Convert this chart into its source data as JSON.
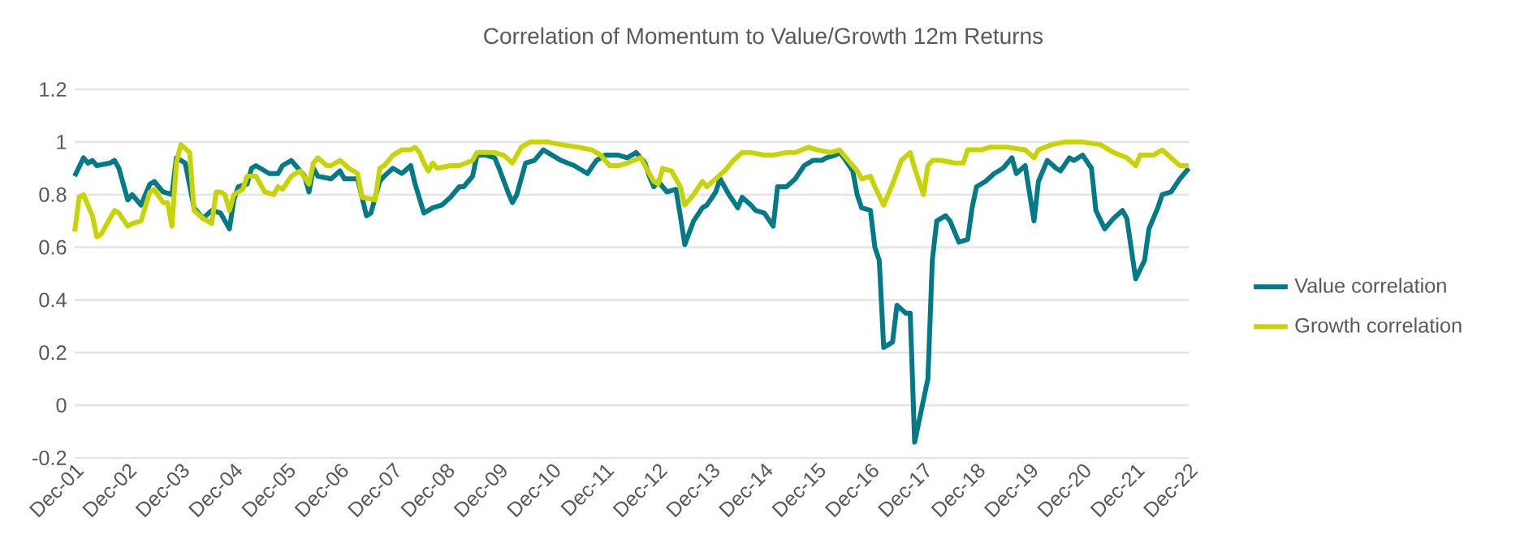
{
  "chart_data": {
    "type": "line",
    "title": "Correlation of Momentum to Value/Growth 12m Returns",
    "series": [
      {
        "name": "Value correlation",
        "color": "#007a87",
        "x": [
          "2001-12",
          "2002-02",
          "2002-03",
          "2002-04",
          "2002-05",
          "2002-08",
          "2002-09",
          "2002-10",
          "2002-12",
          "2003-01",
          "2003-03",
          "2003-05",
          "2003-06",
          "2003-08",
          "2003-10",
          "2003-11",
          "2004-01",
          "2004-03",
          "2004-05",
          "2004-07",
          "2004-09",
          "2004-11",
          "2004-12",
          "2005-01",
          "2005-03",
          "2005-04",
          "2005-05",
          "2005-08",
          "2005-10",
          "2005-11",
          "2006-01",
          "2006-02",
          "2006-04",
          "2006-05",
          "2006-06",
          "2006-07",
          "2006-10",
          "2006-12",
          "2007-01",
          "2007-04",
          "2007-06",
          "2007-07",
          "2007-09",
          "2007-10",
          "2007-12",
          "2008-02",
          "2008-04",
          "2008-05",
          "2008-07",
          "2008-09",
          "2008-11",
          "2009-01",
          "2009-03",
          "2009-04",
          "2009-06",
          "2009-07",
          "2009-09",
          "2009-11",
          "2009-12",
          "2010-02",
          "2010-03",
          "2010-04",
          "2010-06",
          "2010-08",
          "2010-10",
          "2010-12",
          "2011-02",
          "2011-05",
          "2011-08",
          "2011-10",
          "2011-12",
          "2012-03",
          "2012-05",
          "2012-07",
          "2012-09",
          "2012-10",
          "2012-11",
          "2012-12",
          "2013-02",
          "2013-04",
          "2013-05",
          "2013-06",
          "2013-08",
          "2013-10",
          "2013-11",
          "2014-01",
          "2014-02",
          "2014-04",
          "2014-06",
          "2014-07",
          "2014-09",
          "2014-10",
          "2014-12",
          "2015-02",
          "2015-03",
          "2015-05",
          "2015-07",
          "2015-09",
          "2015-11",
          "2016-01",
          "2016-02",
          "2016-04",
          "2016-05",
          "2016-06",
          "2016-08",
          "2016-09",
          "2016-10",
          "2016-12",
          "2017-01",
          "2017-02",
          "2017-03",
          "2017-05",
          "2017-06",
          "2017-08",
          "2017-09",
          "2017-10",
          "2017-12",
          "2018-01",
          "2018-02",
          "2018-03",
          "2018-05",
          "2018-06",
          "2018-08",
          "2018-10",
          "2018-11",
          "2018-12",
          "2019-02",
          "2019-04",
          "2019-06",
          "2019-08",
          "2019-09",
          "2019-11",
          "2020-01",
          "2020-02",
          "2020-04",
          "2020-06",
          "2020-07",
          "2020-09",
          "2020-10",
          "2020-12",
          "2021-02",
          "2021-03",
          "2021-05",
          "2021-07",
          "2021-09",
          "2021-10",
          "2021-12",
          "2022-02",
          "2022-03",
          "2022-05",
          "2022-06",
          "2022-08",
          "2022-10",
          "2022-12"
        ],
        "values": [
          0.87,
          0.94,
          0.92,
          0.93,
          0.91,
          0.92,
          0.93,
          0.9,
          0.78,
          0.8,
          0.76,
          0.84,
          0.85,
          0.81,
          0.8,
          0.94,
          0.92,
          0.75,
          0.71,
          0.74,
          0.73,
          0.67,
          0.78,
          0.83,
          0.84,
          0.9,
          0.91,
          0.88,
          0.88,
          0.91,
          0.93,
          0.91,
          0.87,
          0.81,
          0.9,
          0.87,
          0.86,
          0.89,
          0.86,
          0.86,
          0.72,
          0.73,
          0.85,
          0.87,
          0.9,
          0.88,
          0.91,
          0.84,
          0.73,
          0.75,
          0.76,
          0.79,
          0.83,
          0.83,
          0.87,
          0.95,
          0.95,
          0.94,
          0.9,
          0.81,
          0.77,
          0.8,
          0.92,
          0.93,
          0.97,
          0.95,
          0.93,
          0.91,
          0.88,
          0.93,
          0.95,
          0.95,
          0.94,
          0.96,
          0.92,
          0.87,
          0.83,
          0.85,
          0.81,
          0.82,
          0.72,
          0.61,
          0.7,
          0.75,
          0.76,
          0.81,
          0.86,
          0.8,
          0.75,
          0.79,
          0.76,
          0.74,
          0.73,
          0.68,
          0.83,
          0.83,
          0.86,
          0.91,
          0.93,
          0.93,
          0.94,
          0.95,
          0.96,
          0.94,
          0.89,
          0.8,
          0.75,
          0.74,
          0.6,
          0.55,
          0.22,
          0.24,
          0.38,
          0.35,
          0.35,
          -0.14,
          0.02,
          0.1,
          0.55,
          0.7,
          0.72,
          0.7,
          0.62,
          0.63,
          0.75,
          0.83,
          0.85,
          0.88,
          0.9,
          0.94,
          0.88,
          0.91,
          0.7,
          0.85,
          0.93,
          0.9,
          0.89,
          0.94,
          0.93,
          0.95,
          0.9,
          0.74,
          0.67,
          0.71,
          0.74,
          0.71,
          0.48,
          0.55,
          0.67,
          0.75,
          0.8,
          0.81,
          0.86,
          0.9
        ]
      },
      {
        "name": "Growth correlation",
        "color": "#c8d400",
        "x": [
          "2001-12",
          "2002-01",
          "2002-02",
          "2002-04",
          "2002-05",
          "2002-06",
          "2002-08",
          "2002-09",
          "2002-10",
          "2002-12",
          "2003-01",
          "2003-03",
          "2003-05",
          "2003-06",
          "2003-08",
          "2003-09",
          "2003-10",
          "2003-11",
          "2003-12",
          "2004-02",
          "2004-03",
          "2004-05",
          "2004-07",
          "2004-08",
          "2004-09",
          "2004-10",
          "2004-11",
          "2004-12",
          "2005-02",
          "2005-03",
          "2005-05",
          "2005-07",
          "2005-09",
          "2005-10",
          "2005-11",
          "2006-01",
          "2006-03",
          "2006-05",
          "2006-06",
          "2006-07",
          "2006-09",
          "2006-10",
          "2006-12",
          "2007-02",
          "2007-04",
          "2007-05",
          "2007-08",
          "2007-09",
          "2007-10",
          "2007-12",
          "2008-02",
          "2008-04",
          "2008-05",
          "2008-06",
          "2008-07",
          "2008-08",
          "2008-09",
          "2008-10",
          "2009-01",
          "2009-03",
          "2009-06",
          "2009-07",
          "2009-11",
          "2010-01",
          "2010-03",
          "2010-05",
          "2010-07",
          "2010-11",
          "2011-02",
          "2011-06",
          "2011-09",
          "2011-11",
          "2012-01",
          "2012-03",
          "2012-05",
          "2012-08",
          "2012-09",
          "2012-11",
          "2012-12",
          "2013-01",
          "2013-03",
          "2013-04",
          "2013-05",
          "2013-06",
          "2013-08",
          "2013-10",
          "2013-11",
          "2014-01",
          "2014-03",
          "2014-05",
          "2014-07",
          "2014-09",
          "2014-12",
          "2015-02",
          "2015-05",
          "2015-07",
          "2015-10",
          "2015-12",
          "2016-03",
          "2016-05",
          "2016-07",
          "2016-09",
          "2016-10",
          "2016-12",
          "2017-01",
          "2017-03",
          "2017-05",
          "2017-07",
          "2017-09",
          "2017-10",
          "2017-12",
          "2018-01",
          "2018-02",
          "2018-04",
          "2018-07",
          "2018-09",
          "2018-10",
          "2019-01",
          "2019-03",
          "2019-07",
          "2019-11",
          "2020-01",
          "2020-02",
          "2020-05",
          "2020-08",
          "2020-12",
          "2021-04",
          "2021-07",
          "2021-10",
          "2021-12",
          "2022-01",
          "2022-04",
          "2022-06",
          "2022-08",
          "2022-10",
          "2022-12"
        ],
        "values": [
          0.66,
          0.79,
          0.8,
          0.72,
          0.64,
          0.65,
          0.71,
          0.74,
          0.73,
          0.68,
          0.69,
          0.7,
          0.81,
          0.82,
          0.77,
          0.77,
          0.68,
          0.92,
          0.99,
          0.96,
          0.74,
          0.71,
          0.69,
          0.81,
          0.81,
          0.8,
          0.74,
          0.8,
          0.82,
          0.87,
          0.87,
          0.81,
          0.8,
          0.83,
          0.82,
          0.87,
          0.89,
          0.84,
          0.92,
          0.94,
          0.91,
          0.91,
          0.93,
          0.9,
          0.88,
          0.79,
          0.78,
          0.9,
          0.91,
          0.95,
          0.97,
          0.97,
          0.98,
          0.96,
          0.92,
          0.89,
          0.92,
          0.9,
          0.91,
          0.91,
          0.93,
          0.96,
          0.96,
          0.95,
          0.92,
          0.98,
          1.0,
          1.0,
          0.99,
          0.98,
          0.97,
          0.95,
          0.91,
          0.91,
          0.92,
          0.94,
          0.91,
          0.85,
          0.84,
          0.9,
          0.89,
          0.86,
          0.83,
          0.76,
          0.8,
          0.85,
          0.83,
          0.86,
          0.89,
          0.93,
          0.96,
          0.96,
          0.95,
          0.95,
          0.96,
          0.96,
          0.98,
          0.97,
          0.96,
          0.97,
          0.93,
          0.89,
          0.86,
          0.87,
          0.83,
          0.76,
          0.84,
          0.93,
          0.96,
          0.9,
          0.8,
          0.91,
          0.93,
          0.93,
          0.92,
          0.92,
          0.97,
          0.97,
          0.98,
          0.98,
          0.97,
          0.94,
          0.97,
          0.99,
          1.0,
          1.0,
          0.99,
          0.96,
          0.94,
          0.91,
          0.95,
          0.95,
          0.97,
          0.94,
          0.91,
          0.91
        ]
      }
    ],
    "xlim": [
      "2001-12",
      "2022-12"
    ],
    "xticks": [
      {
        "value": "2001-12",
        "label": "Dec-01"
      },
      {
        "value": "2002-12",
        "label": "Dec-02"
      },
      {
        "value": "2003-12",
        "label": "Dec-03"
      },
      {
        "value": "2004-12",
        "label": "Dec-04"
      },
      {
        "value": "2005-12",
        "label": "Dec-05"
      },
      {
        "value": "2006-12",
        "label": "Dec-06"
      },
      {
        "value": "2007-12",
        "label": "Dec-07"
      },
      {
        "value": "2008-12",
        "label": "Dec-08"
      },
      {
        "value": "2009-12",
        "label": "Dec-09"
      },
      {
        "value": "2010-12",
        "label": "Dec-10"
      },
      {
        "value": "2011-12",
        "label": "Dec-11"
      },
      {
        "value": "2012-12",
        "label": "Dec-12"
      },
      {
        "value": "2013-12",
        "label": "Dec-13"
      },
      {
        "value": "2014-12",
        "label": "Dec-14"
      },
      {
        "value": "2015-12",
        "label": "Dec-15"
      },
      {
        "value": "2016-12",
        "label": "Dec-16"
      },
      {
        "value": "2017-12",
        "label": "Dec-17"
      },
      {
        "value": "2018-12",
        "label": "Dec-18"
      },
      {
        "value": "2019-12",
        "label": "Dec-19"
      },
      {
        "value": "2020-12",
        "label": "Dec-20"
      },
      {
        "value": "2021-12",
        "label": "Dec-21"
      },
      {
        "value": "2022-12",
        "label": "Dec-22"
      }
    ],
    "ylim": [
      -0.2,
      1.2
    ],
    "yticks": [
      -0.2,
      0,
      0.2,
      0.4,
      0.6,
      0.8,
      1,
      1.2
    ],
    "grid": "y",
    "legend": "right"
  }
}
